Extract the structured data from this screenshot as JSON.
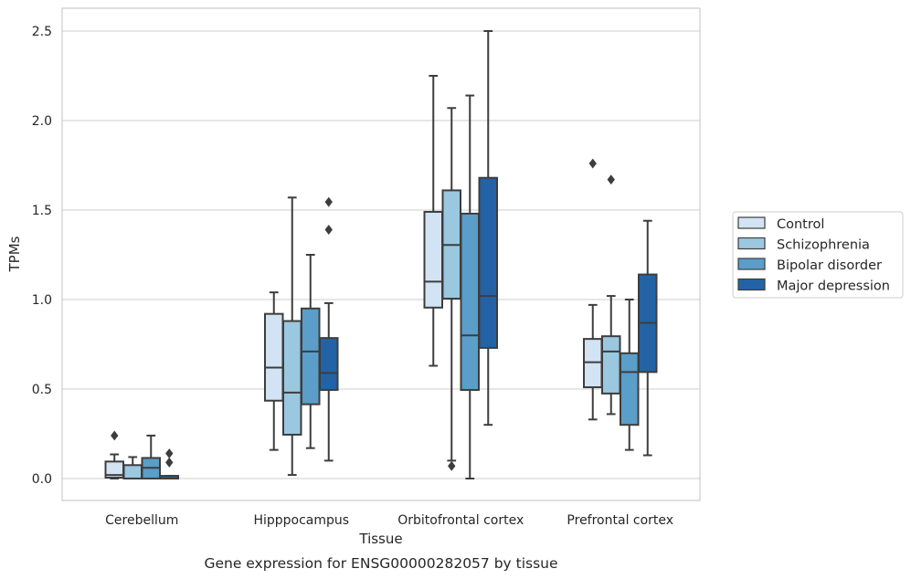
{
  "chart_data": {
    "type": "boxplot",
    "xlabel": "Tissue",
    "ylabel": "TPMs",
    "caption": "Gene expression for ENSG00000282057 by tissue",
    "ylim": [
      -0.12,
      2.63
    ],
    "yticks": [
      "0.0",
      "0.5",
      "1.0",
      "1.5",
      "2.0",
      "2.5"
    ],
    "grid": "horizontal",
    "legend_position": "right",
    "categories": [
      "Cerebellum",
      "Hipppocampus",
      "Orbitofrontal cortex",
      "Prefrontal cortex"
    ],
    "series": [
      {
        "name": "Control",
        "color": "#d2e3f3",
        "boxes": [
          {
            "whislo": 0.0,
            "q1": 0.005,
            "med": 0.02,
            "q3": 0.095,
            "whishi": 0.135,
            "fliers": [
              0.24
            ]
          },
          {
            "whislo": 0.16,
            "q1": 0.435,
            "med": 0.62,
            "q3": 0.92,
            "whishi": 1.04,
            "fliers": []
          },
          {
            "whislo": 0.63,
            "q1": 0.955,
            "med": 1.1,
            "q3": 1.49,
            "whishi": 2.25,
            "fliers": []
          },
          {
            "whislo": 0.33,
            "q1": 0.51,
            "med": 0.65,
            "q3": 0.78,
            "whishi": 0.97,
            "fliers": [
              1.76
            ]
          }
        ]
      },
      {
        "name": "Schizophrenia",
        "color": "#9ac8e0",
        "boxes": [
          {
            "whislo": 0.0,
            "q1": 0.0,
            "med": 0.0,
            "q3": 0.075,
            "whishi": 0.12,
            "fliers": []
          },
          {
            "whislo": 0.02,
            "q1": 0.245,
            "med": 0.48,
            "q3": 0.88,
            "whishi": 1.57,
            "fliers": []
          },
          {
            "whislo": 0.1,
            "q1": 1.005,
            "med": 1.305,
            "q3": 1.61,
            "whishi": 2.07,
            "fliers": [
              0.07
            ]
          },
          {
            "whislo": 0.36,
            "q1": 0.475,
            "med": 0.71,
            "q3": 0.795,
            "whishi": 1.02,
            "fliers": [
              1.67
            ]
          }
        ]
      },
      {
        "name": "Bipolar disorder",
        "color": "#5a9ec9",
        "boxes": [
          {
            "whislo": 0.0,
            "q1": 0.0,
            "med": 0.06,
            "q3": 0.115,
            "whishi": 0.24,
            "fliers": []
          },
          {
            "whislo": 0.17,
            "q1": 0.415,
            "med": 0.71,
            "q3": 0.95,
            "whishi": 1.25,
            "fliers": []
          },
          {
            "whislo": 0.0,
            "q1": 0.495,
            "med": 0.8,
            "q3": 1.48,
            "whishi": 2.14,
            "fliers": []
          },
          {
            "whislo": 0.16,
            "q1": 0.3,
            "med": 0.595,
            "q3": 0.7,
            "whishi": 1.0,
            "fliers": []
          }
        ]
      },
      {
        "name": "Major depression",
        "color": "#2363a5",
        "boxes": [
          {
            "whislo": 0.0,
            "q1": 0.0,
            "med": 0.0,
            "q3": 0.015,
            "whishi": 0.015,
            "fliers": [
              0.09,
              0.14
            ]
          },
          {
            "whislo": 0.1,
            "q1": 0.495,
            "med": 0.59,
            "q3": 0.785,
            "whishi": 0.98,
            "fliers": [
              1.39,
              1.545
            ]
          },
          {
            "whislo": 0.3,
            "q1": 0.73,
            "med": 1.02,
            "q3": 1.68,
            "whishi": 2.5,
            "fliers": []
          },
          {
            "whislo": 0.13,
            "q1": 0.595,
            "med": 0.87,
            "q3": 1.14,
            "whishi": 1.44,
            "fliers": []
          }
        ]
      }
    ]
  }
}
